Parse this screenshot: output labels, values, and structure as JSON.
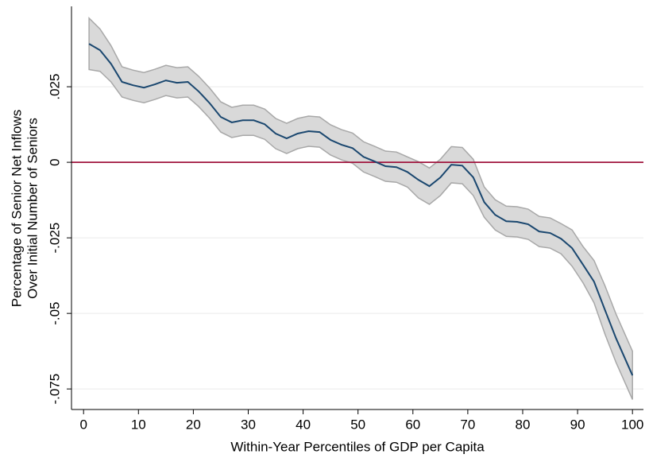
{
  "chart_data": {
    "type": "line",
    "x_label": "Within-Year Percentiles of GDP per Capita",
    "y_label": [
      "Percentage of Senior Net Inflows",
      "Over Initial Number of Seniors"
    ],
    "x": [
      1,
      3,
      5,
      7,
      9,
      11,
      13,
      15,
      17,
      19,
      21,
      23,
      25,
      27,
      29,
      31,
      33,
      35,
      37,
      39,
      41,
      43,
      45,
      47,
      49,
      51,
      53,
      55,
      57,
      59,
      61,
      63,
      65,
      67,
      69,
      71,
      73,
      75,
      77,
      79,
      81,
      83,
      85,
      87,
      89,
      91,
      93,
      95,
      97,
      100
    ],
    "values": [
      0.0392,
      0.0371,
      0.0326,
      0.0266,
      0.0255,
      0.0247,
      0.0258,
      0.0271,
      0.0263,
      0.0266,
      0.0234,
      0.0195,
      0.015,
      0.0132,
      0.0139,
      0.0139,
      0.0126,
      0.0095,
      0.0079,
      0.0095,
      0.0103,
      0.01,
      0.0074,
      0.0058,
      0.0047,
      0.0018,
      0.0003,
      -0.0013,
      -0.0016,
      -0.0032,
      -0.0058,
      -0.0079,
      -0.005,
      -0.0008,
      -0.0011,
      -0.005,
      -0.0132,
      -0.0174,
      -0.0195,
      -0.0197,
      -0.0205,
      -0.0229,
      -0.0234,
      -0.0253,
      -0.0284,
      -0.0339,
      -0.0395,
      -0.0489,
      -0.0582,
      -0.0705
    ],
    "upper": [
      0.0477,
      0.0441,
      0.0386,
      0.0316,
      0.0305,
      0.0297,
      0.0308,
      0.0321,
      0.0313,
      0.0316,
      0.0284,
      0.0245,
      0.02,
      0.0182,
      0.0189,
      0.0189,
      0.0176,
      0.0145,
      0.0129,
      0.0145,
      0.0153,
      0.015,
      0.0124,
      0.0108,
      0.0097,
      0.0068,
      0.0053,
      0.0037,
      0.0034,
      0.0018,
      0.0002,
      -0.0019,
      0.001,
      0.0052,
      0.0049,
      0.001,
      -0.0082,
      -0.0124,
      -0.0145,
      -0.0147,
      -0.0155,
      -0.0179,
      -0.0184,
      -0.0203,
      -0.0224,
      -0.0279,
      -0.0325,
      -0.0409,
      -0.0502,
      -0.0625
    ],
    "lower": [
      0.0307,
      0.0301,
      0.0266,
      0.0216,
      0.0205,
      0.0197,
      0.0208,
      0.0221,
      0.0213,
      0.0216,
      0.0184,
      0.0145,
      0.01,
      0.0082,
      0.0089,
      0.0089,
      0.0076,
      0.0045,
      0.0029,
      0.0045,
      0.0053,
      0.005,
      0.0024,
      0.0008,
      -0.0003,
      -0.0032,
      -0.0047,
      -0.0063,
      -0.0066,
      -0.0082,
      -0.0118,
      -0.0139,
      -0.011,
      -0.0068,
      -0.0071,
      -0.011,
      -0.0182,
      -0.0224,
      -0.0245,
      -0.0247,
      -0.0255,
      -0.0279,
      -0.0284,
      -0.0303,
      -0.0344,
      -0.0399,
      -0.0465,
      -0.0569,
      -0.0662,
      -0.0785
    ],
    "color": "#1a476f",
    "band_color": "#d9d9d9",
    "band_edge": "#a8a8a8",
    "reference_line": {
      "value": 0,
      "color": "#a0153e"
    },
    "xlim": [
      -2.2,
      102
    ],
    "xticks": [
      0,
      10,
      20,
      30,
      40,
      50,
      60,
      70,
      80,
      90,
      100
    ],
    "ylim": [
      -0.0818,
      0.0516
    ],
    "yticks": [
      {
        "value": -0.075,
        "label": "-.075"
      },
      {
        "value": -0.05,
        "label": "-.05"
      },
      {
        "value": -0.025,
        "label": "-.025"
      },
      0,
      {
        "value": 0.025,
        "label": ".025"
      }
    ],
    "grid": true,
    "grid_color": "#eaeaea"
  }
}
